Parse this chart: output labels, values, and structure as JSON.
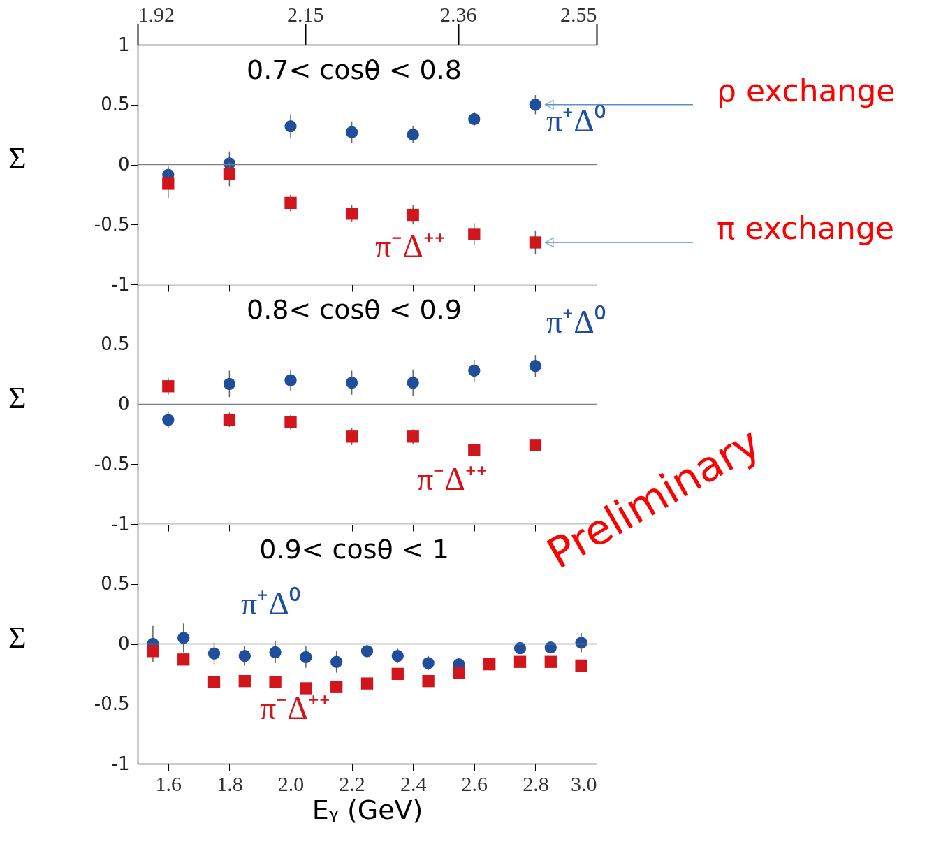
{
  "chart_data": [
    {
      "type": "scatter",
      "title": "0.7< cosθ < 0.8",
      "ylabel": "Σ",
      "x2lim": [
        1.92,
        2.55
      ],
      "x2ticks": [
        1.92,
        2.15,
        2.36,
        2.55
      ],
      "xlim": [
        1.5,
        3.0
      ],
      "xticks": [
        1.6,
        1.8,
        2,
        2.2,
        2.4,
        2.6,
        2.8,
        3
      ],
      "ylim": [
        -1,
        1
      ],
      "yticks": [
        -1,
        -0.5,
        0,
        0.5,
        1
      ],
      "tick_labels": "y",
      "ref_lines": [
        {
          "axis": "y",
          "value": 0,
          "color": "#808080"
        }
      ],
      "x": [
        1.6,
        1.8,
        2.0,
        2.2,
        2.4,
        2.6,
        2.8
      ],
      "series": [
        {
          "name": "π⁺Δ⁰",
          "color": "#1f4e9c",
          "marker": "circle",
          "values": [
            -0.085,
            0.01,
            0.32,
            0.27,
            0.25,
            0.38,
            0.5
          ],
          "errors": [
            0.07,
            0.1,
            0.1,
            0.09,
            0.07,
            0.06,
            0.08
          ]
        },
        {
          "name": "π⁻Δ⁺⁺",
          "color": "#d0161c",
          "marker": "square",
          "values": [
            -0.16,
            -0.08,
            -0.32,
            -0.41,
            -0.42,
            -0.58,
            -0.65
          ],
          "errors": [
            0.12,
            0.1,
            0.07,
            0.07,
            0.08,
            0.09,
            0.1
          ]
        }
      ],
      "annotations": [
        "ρ exchange",
        "π exchange"
      ]
    },
    {
      "type": "scatter",
      "title": "0.8< cosθ < 0.9",
      "ylabel": "Σ",
      "xlim": [
        1.5,
        3.0
      ],
      "xticks": [
        1.6,
        1.8,
        2,
        2.2,
        2.4,
        2.6,
        2.8,
        3
      ],
      "ylim": [
        -1,
        1
      ],
      "yticks": [
        -1,
        -0.5,
        0,
        0.5,
        {
          "value": 1,
          "label": null
        }
      ],
      "tick_labels": "y",
      "ref_lines": [
        {
          "axis": "y",
          "value": 0,
          "color": "#808080"
        }
      ],
      "x": [
        1.6,
        1.8,
        2.0,
        2.2,
        2.4,
        2.6,
        2.8
      ],
      "series": [
        {
          "name": "π⁺Δ⁰",
          "color": "#1f4e9c",
          "marker": "circle",
          "values": [
            -0.13,
            0.17,
            0.2,
            0.18,
            0.18,
            0.28,
            0.32
          ],
          "errors": [
            0.07,
            0.11,
            0.09,
            0.1,
            0.11,
            0.09,
            0.09
          ]
        },
        {
          "name": "π⁻Δ⁺⁺",
          "color": "#d0161c",
          "marker": "square",
          "values": [
            0.15,
            -0.13,
            -0.15,
            -0.27,
            -0.27,
            -0.38,
            -0.34
          ],
          "errors": [
            0.07,
            0.06,
            0.06,
            0.07,
            0.06,
            null,
            null
          ]
        }
      ]
    },
    {
      "type": "scatter",
      "title": "0.9< cosθ < 1",
      "ylabel": "Σ",
      "xlabel": "Eᵧ (GeV)",
      "xlim": [
        1.5,
        3.0
      ],
      "xticks": [
        1.6,
        1.8,
        {
          "value": 2,
          "label": "2.0"
        },
        2.2,
        2.4,
        2.6,
        2.8,
        {
          "value": 3,
          "label": "3.0"
        }
      ],
      "ylim": [
        -1,
        1
      ],
      "yticks": [
        -1,
        -0.5,
        0,
        0.5,
        {
          "value": 1,
          "label": null
        }
      ],
      "ref_lines": [
        {
          "axis": "y",
          "value": 0,
          "color": "#808080"
        }
      ],
      "x": [
        1.55,
        1.65,
        1.75,
        1.85,
        1.95,
        2.05,
        2.15,
        2.25,
        2.35,
        2.45,
        2.55,
        2.65,
        2.75,
        2.85,
        2.95
      ],
      "series": [
        {
          "name": "π⁺Δ⁰",
          "color": "#1f4e9c",
          "marker": "circle",
          "values": [
            0,
            0.05,
            -0.08,
            -0.1,
            -0.07,
            -0.11,
            -0.15,
            -0.06,
            -0.1,
            -0.16,
            -0.17,
            null,
            -0.035,
            -0.03,
            0.01
          ],
          "errors": [
            0.15,
            0.12,
            0.09,
            0.08,
            0.09,
            0.09,
            0.09,
            0.05,
            0.06,
            0.06,
            null,
            null,
            null,
            0.04,
            0.08
          ]
        },
        {
          "name": "π⁻Δ⁺⁺",
          "color": "#d0161c",
          "marker": "square",
          "values": [
            -0.06,
            -0.13,
            -0.32,
            -0.31,
            -0.32,
            -0.37,
            -0.36,
            -0.33,
            -0.25,
            -0.31,
            -0.24,
            -0.17,
            -0.15,
            -0.15,
            -0.18
          ]
        }
      ],
      "annotations": [
        "Preliminary"
      ]
    }
  ]
}
